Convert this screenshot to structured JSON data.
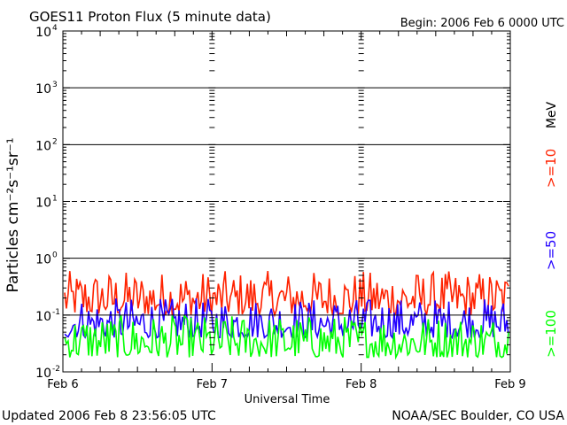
{
  "title": "GOES11 Proton Flux (5 minute data)",
  "begin": "Begin: 2006 Feb 6 0000 UTC",
  "updated": "Updated 2006 Feb  8 23:56:05 UTC",
  "credit": "NOAA/SEC Boulder, CO USA",
  "chart_data": {
    "type": "line",
    "title": "GOES11 Proton Flux (5 minute data)",
    "xlabel": "Universal Time",
    "ylabel": "Particles cm⁻²s⁻¹sr⁻¹",
    "yscale": "log",
    "ylim": [
      0.01,
      10000
    ],
    "xlim": [
      "2006-02-06 00:00",
      "2006-02-09 00:00"
    ],
    "x_ticks": [
      "Feb 6",
      "Feb 7",
      "Feb 8",
      "Feb 9"
    ],
    "y_ticks": [
      {
        "base": "10",
        "exp": "4"
      },
      {
        "base": "10",
        "exp": "3"
      },
      {
        "base": "10",
        "exp": "2"
      },
      {
        "base": "10",
        "exp": "1"
      },
      {
        "base": "10",
        "exp": "0"
      },
      {
        "base": "10",
        "exp": "-1"
      },
      {
        "base": "10",
        "exp": "-2"
      }
    ],
    "thresholds": [
      {
        "value": 1000,
        "style": "solid"
      },
      {
        "value": 100,
        "style": "solid"
      },
      {
        "value": 10,
        "style": "dashed"
      },
      {
        "value": 1,
        "style": "solid"
      },
      {
        "value": 0.1,
        "style": "solid"
      }
    ],
    "legend_unit": "MeV",
    "series": [
      {
        "name": ">=10",
        "color": "#ff2200",
        "typical_range": [
          0.1,
          0.6
        ]
      },
      {
        "name": ">=50",
        "color": "#2200ff",
        "typical_range": [
          0.04,
          0.2
        ]
      },
      {
        "name": ">=100",
        "color": "#00ff00",
        "typical_range": [
          0.018,
          0.1
        ]
      }
    ]
  }
}
